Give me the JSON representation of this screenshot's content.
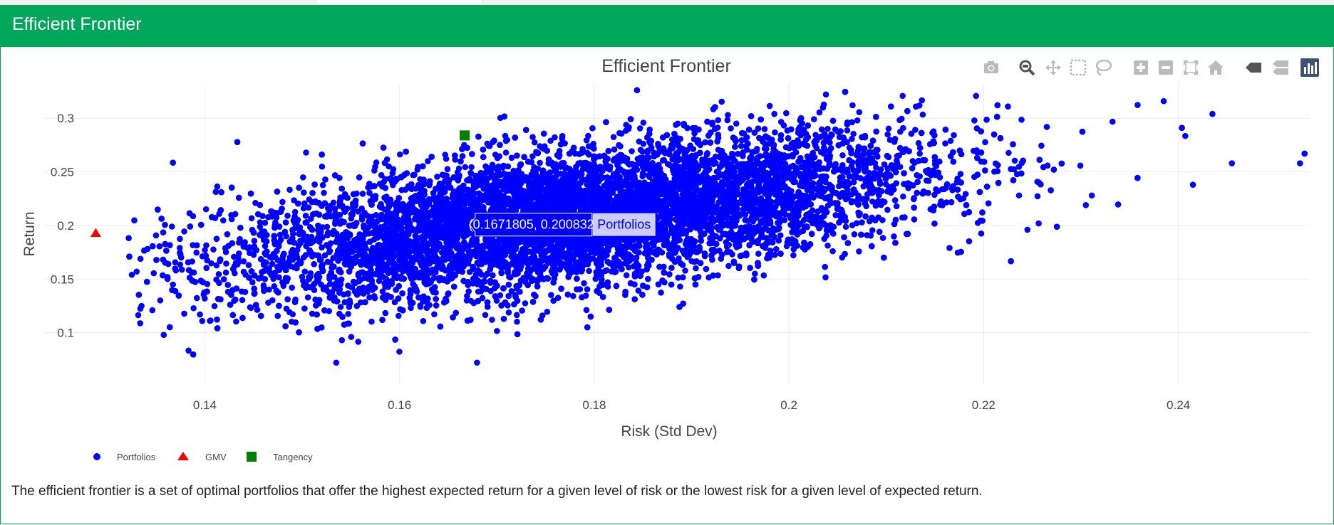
{
  "panel": {
    "title": "Efficient Frontier"
  },
  "description": "The efficient frontier is a set of optimal portfolios that offer the highest expected return for a given level of risk or the lowest risk for a given level of expected return.",
  "modebar": [
    {
      "name": "camera-icon",
      "title": "Download plot as a png"
    },
    {
      "name": "zoom-icon",
      "title": "Zoom"
    },
    {
      "name": "pan-icon",
      "title": "Pan"
    },
    {
      "name": "box-select-icon",
      "title": "Box Select"
    },
    {
      "name": "lasso-select-icon",
      "title": "Lasso Select"
    },
    {
      "name": "zoom-in-icon",
      "title": "Zoom in"
    },
    {
      "name": "zoom-out-icon",
      "title": "Zoom out"
    },
    {
      "name": "autoscale-icon",
      "title": "Autoscale"
    },
    {
      "name": "reset-axes-icon",
      "title": "Reset axes"
    },
    {
      "name": "hover-closest-icon",
      "title": "Show closest data on hover"
    },
    {
      "name": "hover-compare-icon",
      "title": "Compare data on hover"
    },
    {
      "name": "plotly-logo-icon",
      "title": "Produced with Plotly"
    }
  ],
  "chart_data": {
    "type": "scatter",
    "title": "Efficient Frontier",
    "xlabel": "Risk (Std Dev)",
    "ylabel": "Return",
    "xlim": [
      0.1235,
      0.2535
    ],
    "ylim": [
      0.052,
      0.332
    ],
    "xticks": [
      "0.14",
      "0.16",
      "0.18",
      "0.2",
      "0.22",
      "0.24"
    ],
    "xtick_values": [
      0.14,
      0.16,
      0.18,
      0.2,
      0.22,
      0.24
    ],
    "yticks": [
      "0.1",
      "0.15",
      "0.2",
      "0.25",
      "0.3"
    ],
    "ytick_values": [
      0.1,
      0.15,
      0.2,
      0.25,
      0.3
    ],
    "grid": true,
    "legend_placement": "bottom-left",
    "series": [
      {
        "name": "Portfolios",
        "marker": "circle",
        "color": "#0000ff",
        "n_points": 10000,
        "cloud": {
          "center_risk": 0.178,
          "center_return": 0.208,
          "risk_sd": 0.0175,
          "return_sd": 0.037,
          "correlation": 0.55
        },
        "outliers": [
          [
            0.1535,
            0.072
          ],
          [
            0.1395,
            0.117
          ],
          [
            0.1695,
            0.112
          ],
          [
            0.1335,
            0.125
          ],
          [
            0.2385,
            0.316
          ],
          [
            0.2435,
            0.304
          ],
          [
            0.2525,
            0.258
          ],
          [
            0.2455,
            0.258
          ],
          [
            0.2415,
            0.238
          ],
          [
            0.2245,
            0.196
          ],
          [
            0.2035,
            0.31
          ],
          [
            0.2225,
            0.311
          ],
          [
            0.1985,
            0.304
          ],
          [
            0.2165,
            0.179
          ],
          [
            0.1965,
            0.155
          ],
          [
            0.2045,
            0.176
          ],
          [
            0.1325,
            0.154
          ],
          [
            0.2305,
            0.219
          ]
        ]
      },
      {
        "name": "GMV",
        "marker": "triangle-up",
        "color": "#ff0000",
        "points": [
          [
            0.1288,
            0.193
          ]
        ]
      },
      {
        "name": "Tangency",
        "marker": "square",
        "color": "#008000",
        "points": [
          [
            0.1667,
            0.284
          ]
        ]
      }
    ],
    "hover_label": {
      "text": "(0.1671805, 0.200832)",
      "series": "Portfolios",
      "x": 0.1671805,
      "y": 0.200832
    }
  }
}
